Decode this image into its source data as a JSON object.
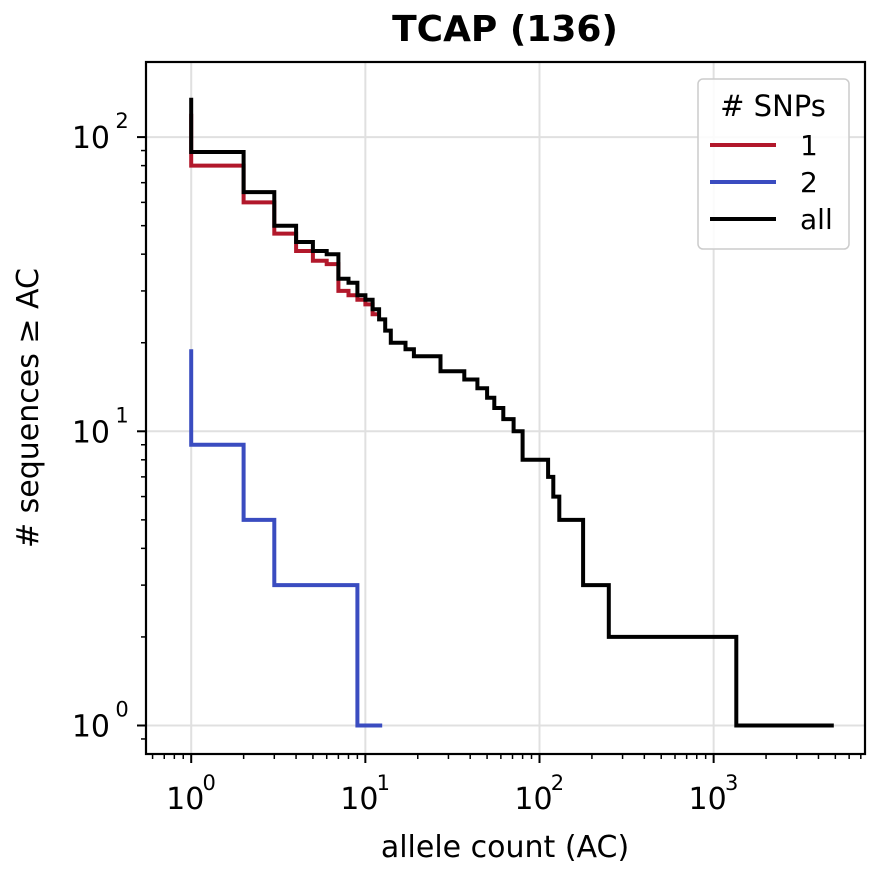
{
  "chart_data": {
    "type": "line",
    "title": "TCAP (136)",
    "xlabel": "allele count (AC)",
    "ylabel": "# sequences ≥ AC",
    "xscale": "log",
    "yscale": "log",
    "xlim": [
      0.55,
      7400
    ],
    "ylim": [
      0.8,
      180
    ],
    "grid": true,
    "x_ticks": [
      {
        "base": "10",
        "exp": "0",
        "value": 1
      },
      {
        "base": "10",
        "exp": "1",
        "value": 10
      },
      {
        "base": "10",
        "exp": "2",
        "value": 100
      },
      {
        "base": "10",
        "exp": "3",
        "value": 1000
      }
    ],
    "y_ticks": [
      {
        "base": "10",
        "exp": "0",
        "value": 1
      },
      {
        "base": "10",
        "exp": "1",
        "value": 10
      },
      {
        "base": "10",
        "exp": "2",
        "value": 100
      }
    ],
    "legend": {
      "title": "# SNPs",
      "position": "top-right"
    },
    "series": [
      {
        "name": "1",
        "color": "#b2182b",
        "points": [
          [
            1,
            120
          ],
          [
            1,
            80
          ],
          [
            2,
            80
          ],
          [
            2,
            60
          ],
          [
            3,
            60
          ],
          [
            3,
            47
          ],
          [
            4,
            47
          ],
          [
            4,
            41
          ],
          [
            5,
            41
          ],
          [
            5,
            38
          ],
          [
            6,
            38
          ],
          [
            6,
            37
          ],
          [
            7,
            37
          ],
          [
            7,
            30
          ],
          [
            8,
            30
          ],
          [
            8,
            29
          ],
          [
            9,
            29
          ],
          [
            9,
            28
          ],
          [
            10,
            28
          ],
          [
            10,
            27
          ],
          [
            11,
            27
          ],
          [
            11,
            25
          ],
          [
            12,
            25
          ]
        ]
      },
      {
        "name": "2",
        "color": "#3a4cc0",
        "points": [
          [
            1,
            19
          ],
          [
            1,
            9
          ],
          [
            2,
            9
          ],
          [
            2,
            5
          ],
          [
            3,
            5
          ],
          [
            3,
            3
          ],
          [
            9,
            3
          ],
          [
            9,
            1
          ],
          [
            12.5,
            1
          ]
        ]
      },
      {
        "name": "all",
        "color": "#000000",
        "points": [
          [
            1,
            136
          ],
          [
            1,
            89
          ],
          [
            2,
            89
          ],
          [
            2,
            65
          ],
          [
            3,
            65
          ],
          [
            3,
            50
          ],
          [
            4,
            50
          ],
          [
            4,
            44
          ],
          [
            5,
            44
          ],
          [
            5,
            41
          ],
          [
            6,
            41
          ],
          [
            6,
            40
          ],
          [
            7,
            40
          ],
          [
            7,
            33
          ],
          [
            8,
            33
          ],
          [
            8,
            32
          ],
          [
            9,
            32
          ],
          [
            9,
            29
          ],
          [
            10,
            29
          ],
          [
            10,
            28
          ],
          [
            11,
            28
          ],
          [
            11,
            26
          ],
          [
            12,
            26
          ],
          [
            12,
            24
          ],
          [
            13,
            24
          ],
          [
            13,
            22
          ],
          [
            14,
            22
          ],
          [
            14,
            20
          ],
          [
            17,
            20
          ],
          [
            17,
            19
          ],
          [
            19,
            19
          ],
          [
            19,
            18
          ],
          [
            27,
            18
          ],
          [
            27,
            16
          ],
          [
            37,
            16
          ],
          [
            37,
            15
          ],
          [
            44,
            15
          ],
          [
            44,
            14
          ],
          [
            50,
            14
          ],
          [
            50,
            13
          ],
          [
            55,
            13
          ],
          [
            55,
            12
          ],
          [
            62,
            12
          ],
          [
            62,
            11
          ],
          [
            71,
            11
          ],
          [
            71,
            10
          ],
          [
            80,
            10
          ],
          [
            80,
            8
          ],
          [
            112,
            8
          ],
          [
            112,
            7
          ],
          [
            120,
            7
          ],
          [
            120,
            6
          ],
          [
            130,
            6
          ],
          [
            130,
            5
          ],
          [
            178,
            5
          ],
          [
            178,
            3
          ],
          [
            250,
            3
          ],
          [
            250,
            2
          ],
          [
            1350,
            2
          ],
          [
            1350,
            1
          ],
          [
            4900,
            1
          ]
        ]
      }
    ]
  }
}
